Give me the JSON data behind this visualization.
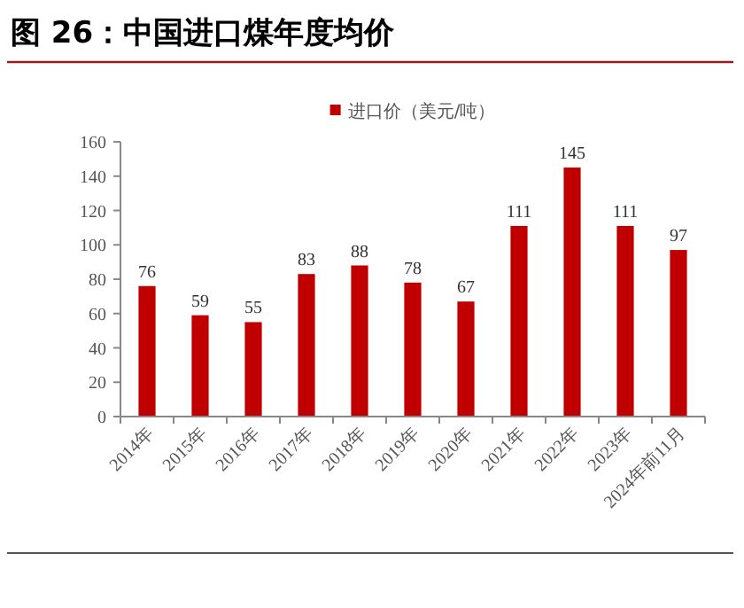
{
  "chart_data": {
    "type": "bar",
    "title": "图 26：中国进口煤年度均价",
    "categories": [
      "2014年",
      "2015年",
      "2016年",
      "2017年",
      "2018年",
      "2019年",
      "2020年",
      "2021年",
      "2022年",
      "2023年",
      "2024年前11月"
    ],
    "series": [
      {
        "name": "进口价（美元/吨）",
        "color": "#c00000",
        "values": [
          76,
          59,
          55,
          83,
          88,
          78,
          67,
          111,
          145,
          111,
          97
        ]
      }
    ],
    "ylim": [
      0,
      160
    ],
    "yticks": [
      0,
      20,
      40,
      60,
      80,
      100,
      120,
      140,
      160
    ],
    "data_labels": true,
    "legend": "top",
    "grid": false
  }
}
